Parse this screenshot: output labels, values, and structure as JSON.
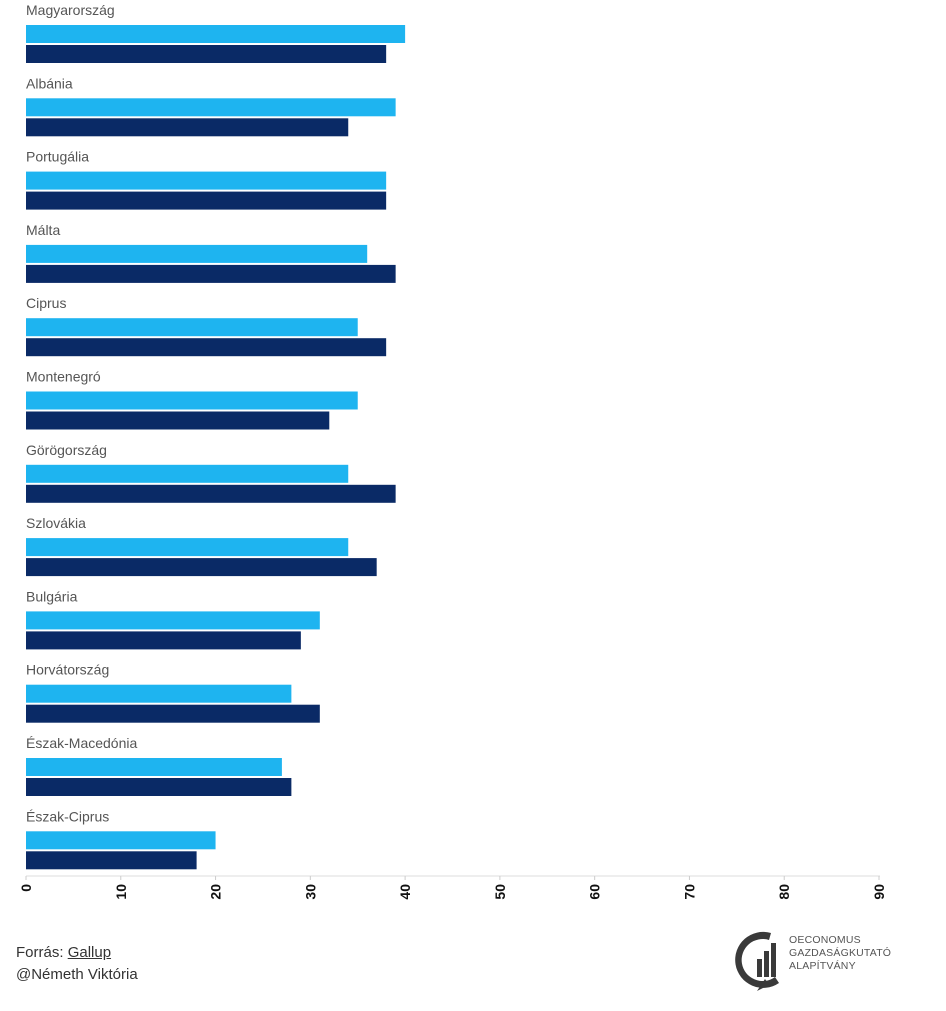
{
  "chart_data": {
    "type": "bar",
    "orientation": "horizontal",
    "categories": [
      "Magyarország",
      "Albánia",
      "Portugália",
      "Málta",
      "Ciprus",
      "Montenegró",
      "Görögország",
      "Szlovákia",
      "Bulgária",
      "Horvátország",
      "Észak-Macedónia",
      "Észak-Ciprus"
    ],
    "series": [
      {
        "color": "#1eb4f0",
        "values": [
          40,
          39,
          38,
          36,
          35,
          35,
          34,
          34,
          31,
          28,
          27,
          20
        ]
      },
      {
        "color": "#0a2a66",
        "values": [
          38,
          34,
          38,
          39,
          38,
          32,
          39,
          37,
          29,
          31,
          28,
          18
        ]
      }
    ],
    "xlim": [
      0,
      90
    ],
    "xticks": [
      "0",
      "10",
      "20",
      "30",
      "40",
      "50",
      "60",
      "70",
      "80",
      "90"
    ],
    "grid": false,
    "legend": "none"
  },
  "footer": {
    "source_prefix": "Forrás: ",
    "source_link": "Gallup",
    "author": "@Németh Viktória"
  },
  "logo": {
    "line1": "OECONOMUS",
    "line2": "GAZDASÁGKUTATÓ",
    "line3": "ALAPÍTVÁNY"
  }
}
